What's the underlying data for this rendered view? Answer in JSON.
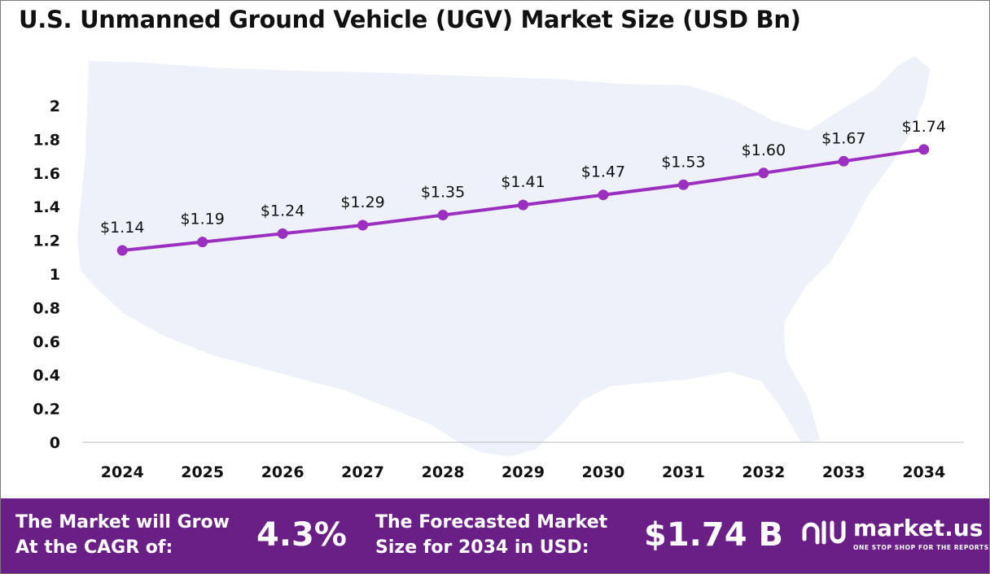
{
  "header": {
    "title": "U.S. Unmanned Ground Vehicle (UGV) Market Size (USD Bn)"
  },
  "colors": {
    "line": "#9b2fbf",
    "footer_bg": "#6a1f86",
    "map_fill": "#eef1f9",
    "grid": "#d0d0d0"
  },
  "chart_data": {
    "type": "line",
    "title": "U.S. Unmanned Ground Vehicle (UGV) Market Size (USD Bn)",
    "categories": [
      "2024",
      "2025",
      "2026",
      "2027",
      "2028",
      "2029",
      "2030",
      "2031",
      "2032",
      "2033",
      "2034"
    ],
    "values": [
      1.14,
      1.19,
      1.24,
      1.29,
      1.35,
      1.41,
      1.47,
      1.53,
      1.6,
      1.67,
      1.74
    ],
    "data_labels": [
      "$1.14",
      "$1.19",
      "$1.24",
      "$1.29",
      "$1.35",
      "$1.41",
      "$1.47",
      "$1.53",
      "$1.60",
      "$1.67",
      "$1.74"
    ],
    "y_ticks": [
      "0",
      "0.2",
      "0.4",
      "0.6",
      "0.8",
      "1",
      "1.2",
      "1.4",
      "1.6",
      "1.8",
      "2"
    ],
    "ylim": [
      0,
      2
    ],
    "grid": false,
    "legend": "none",
    "background_graphic": "us-map"
  },
  "footer": {
    "cagr_label_line1": "The Market will Grow",
    "cagr_label_line2": "At the CAGR of:",
    "cagr_value": "4.3%",
    "forecast_label_line1": "The Forecasted Market",
    "forecast_label_line2": "Size for 2034 in USD:",
    "forecast_value": "$1.74 B",
    "brand_name": "market.us",
    "brand_tagline": "ONE STOP SHOP FOR THE REPORTS"
  }
}
